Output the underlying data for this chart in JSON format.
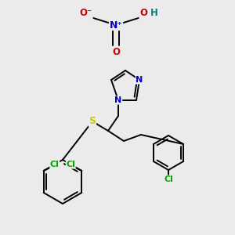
{
  "bg_color": "#ebebeb",
  "atom_colors": {
    "C": "#000000",
    "N": "#0000cc",
    "O": "#cc0000",
    "S": "#cccc00",
    "Cl": "#00aa00",
    "H": "#008080",
    "bond": "#000000"
  }
}
